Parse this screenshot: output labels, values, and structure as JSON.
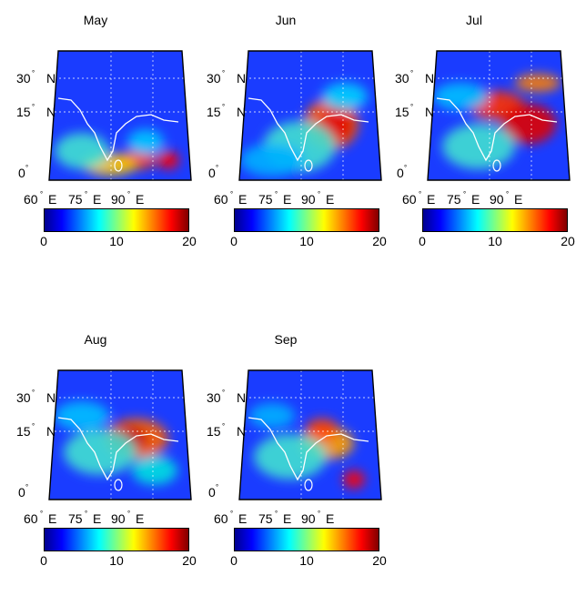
{
  "figure": {
    "panels": [
      {
        "id": "may",
        "title": "May"
      },
      {
        "id": "jun",
        "title": "Jun"
      },
      {
        "id": "jul",
        "title": "Jul"
      },
      {
        "id": "aug",
        "title": "Aug"
      },
      {
        "id": "sep",
        "title": "Sep"
      }
    ],
    "lat_labels": [
      {
        "deg": "30",
        "dir": "N"
      },
      {
        "deg": "15",
        "dir": "N"
      },
      {
        "deg": "0",
        "dir": ""
      }
    ],
    "lon_labels": [
      {
        "deg": "60",
        "dir": "E"
      },
      {
        "deg": "75",
        "dir": "E"
      },
      {
        "deg": "90",
        "dir": "E"
      }
    ],
    "degree_symbol": "°",
    "colorbar": {
      "ticks": [
        "0",
        "10",
        "20"
      ],
      "range": [
        0,
        20
      ],
      "colormap": "jet"
    },
    "colors": {
      "ocean_base": "#1a3cff",
      "coastline": "#ffffff",
      "grid": "#ffffff",
      "frame": "#000000"
    }
  }
}
